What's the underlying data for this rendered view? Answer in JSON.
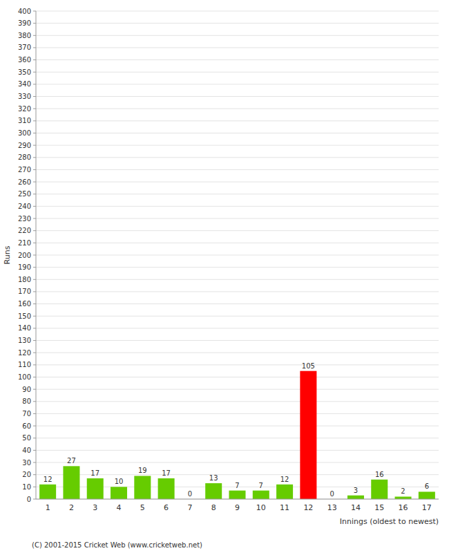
{
  "chart_data": {
    "type": "bar",
    "xlabel": "Innings (oldest to newest)",
    "ylabel": "Runs",
    "categories": [
      "1",
      "2",
      "3",
      "4",
      "5",
      "6",
      "7",
      "8",
      "9",
      "10",
      "11",
      "12",
      "13",
      "14",
      "15",
      "16",
      "17"
    ],
    "values": [
      12,
      27,
      17,
      10,
      19,
      17,
      0,
      13,
      7,
      7,
      12,
      105,
      0,
      3,
      16,
      2,
      6
    ],
    "colors": [
      "#66cc00",
      "#66cc00",
      "#66cc00",
      "#66cc00",
      "#66cc00",
      "#66cc00",
      "#66cc00",
      "#66cc00",
      "#66cc00",
      "#66cc00",
      "#66cc00",
      "#ff0000",
      "#66cc00",
      "#66cc00",
      "#66cc00",
      "#66cc00",
      "#66cc00"
    ],
    "ylim": [
      0,
      400
    ],
    "yticks": [
      0,
      10,
      20,
      30,
      40,
      50,
      60,
      70,
      80,
      90,
      100,
      110,
      120,
      130,
      140,
      150,
      160,
      170,
      180,
      190,
      200,
      210,
      220,
      230,
      240,
      250,
      260,
      270,
      280,
      290,
      300,
      310,
      320,
      330,
      340,
      350,
      360,
      370,
      380,
      390,
      400
    ],
    "grid": true,
    "data_labels": true,
    "footer": "(C) 2001-2015 Cricket Web (www.cricketweb.net)"
  }
}
